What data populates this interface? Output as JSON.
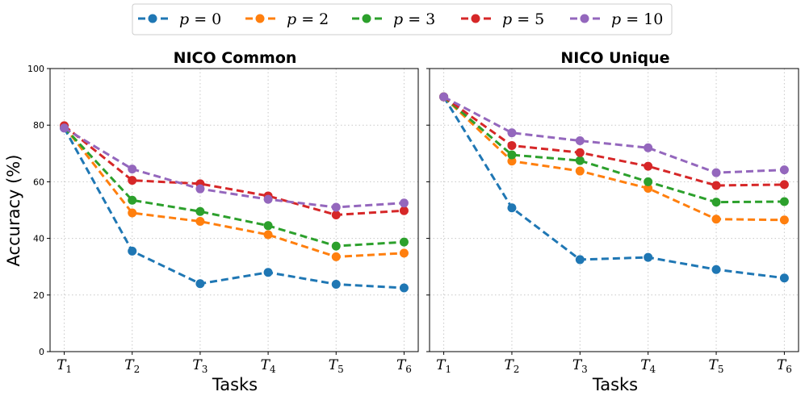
{
  "chart_data": [
    {
      "type": "line",
      "title": "NICO Common",
      "xlabel": "Tasks",
      "ylabel": "Accuracy (%)",
      "ylim": [
        0,
        100
      ],
      "yticks": [
        "0",
        "20",
        "40",
        "60",
        "80",
        "100"
      ],
      "categories": [
        {
          "base": "T",
          "sub": "1"
        },
        {
          "base": "T",
          "sub": "2"
        },
        {
          "base": "T",
          "sub": "3"
        },
        {
          "base": "T",
          "sub": "4"
        },
        {
          "base": "T",
          "sub": "5"
        },
        {
          "base": "T",
          "sub": "6"
        }
      ],
      "grid": true,
      "series": [
        {
          "name": "p = 0",
          "color": "#1f77b4",
          "values": [
            79.0,
            35.5,
            24.0,
            28.0,
            23.8,
            22.5
          ]
        },
        {
          "name": "p = 2",
          "color": "#ff7f0e",
          "values": [
            79.5,
            49.0,
            46.0,
            41.3,
            33.5,
            34.8
          ]
        },
        {
          "name": "p = 3",
          "color": "#2ca02c",
          "values": [
            79.2,
            53.5,
            49.5,
            44.5,
            37.3,
            38.7
          ]
        },
        {
          "name": "p = 5",
          "color": "#d62728",
          "values": [
            79.8,
            60.5,
            59.3,
            55.0,
            48.3,
            49.8
          ]
        },
        {
          "name": "p = 10",
          "color": "#9467bd",
          "values": [
            79.0,
            64.5,
            57.5,
            53.8,
            51.0,
            52.5
          ]
        }
      ]
    },
    {
      "type": "line",
      "title": "NICO Unique",
      "xlabel": "Tasks",
      "ylabel": "",
      "ylim": [
        0,
        100
      ],
      "categories": [
        {
          "base": "T",
          "sub": "1"
        },
        {
          "base": "T",
          "sub": "2"
        },
        {
          "base": "T",
          "sub": "3"
        },
        {
          "base": "T",
          "sub": "4"
        },
        {
          "base": "T",
          "sub": "5"
        },
        {
          "base": "T",
          "sub": "6"
        }
      ],
      "grid": true,
      "series": [
        {
          "name": "p = 0",
          "color": "#1f77b4",
          "values": [
            90.0,
            50.8,
            32.5,
            33.3,
            29.0,
            26.0
          ]
        },
        {
          "name": "p = 2",
          "color": "#ff7f0e",
          "values": [
            90.0,
            67.3,
            63.8,
            57.7,
            46.8,
            46.5
          ]
        },
        {
          "name": "p = 3",
          "color": "#2ca02c",
          "values": [
            90.0,
            69.5,
            67.5,
            60.0,
            52.8,
            53.0
          ]
        },
        {
          "name": "p = 5",
          "color": "#d62728",
          "values": [
            90.0,
            72.8,
            70.3,
            65.5,
            58.7,
            59.0
          ]
        },
        {
          "name": "p = 10",
          "color": "#9467bd",
          "values": [
            90.0,
            77.3,
            74.5,
            72.0,
            63.2,
            64.2
          ]
        }
      ]
    }
  ],
  "legend": {
    "placement": "top-center",
    "entries": [
      {
        "var": "p",
        "eq": " = ",
        "num": "0",
        "color": "#1f77b4"
      },
      {
        "var": "p",
        "eq": " = ",
        "num": "2",
        "color": "#ff7f0e"
      },
      {
        "var": "p",
        "eq": " = ",
        "num": "3",
        "color": "#2ca02c"
      },
      {
        "var": "p",
        "eq": " = ",
        "num": "5",
        "color": "#d62728"
      },
      {
        "var": "p",
        "eq": " = ",
        "num": "10",
        "color": "#9467bd"
      }
    ]
  }
}
